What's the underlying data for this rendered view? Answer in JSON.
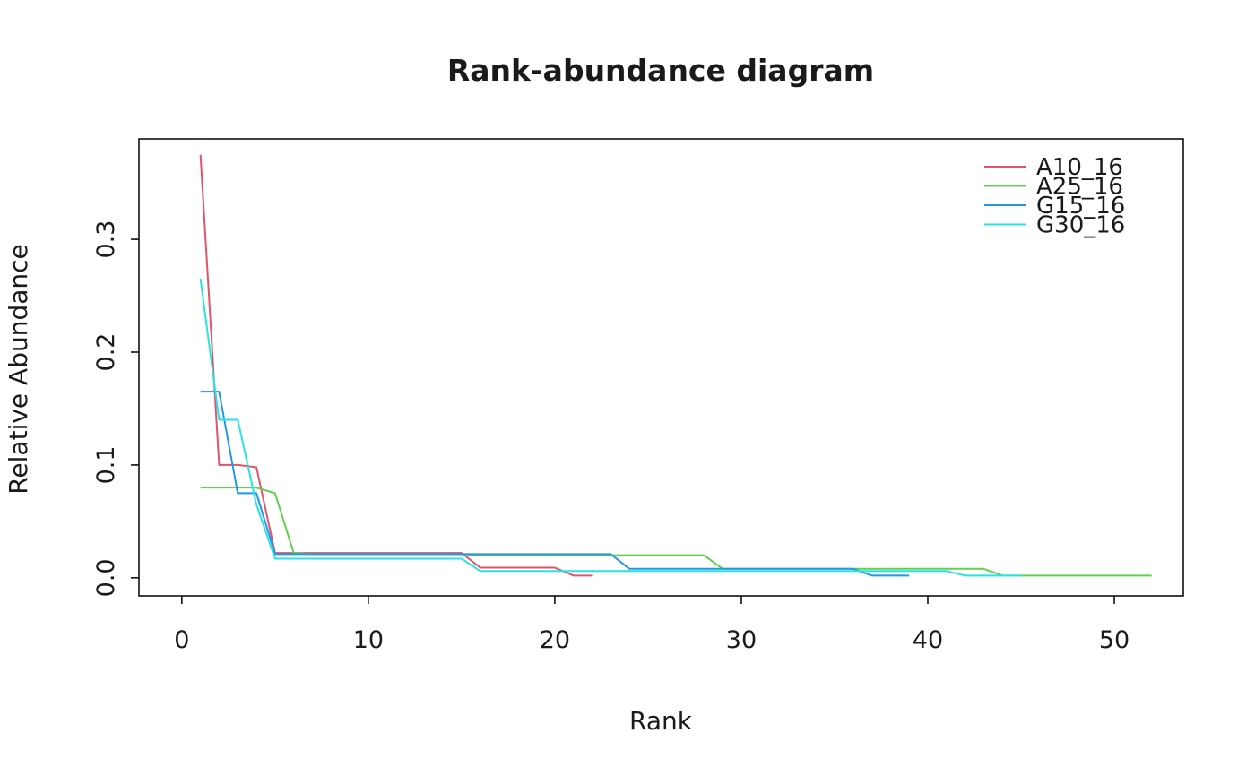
{
  "title": "Rank-abundance diagram",
  "chart_data": {
    "type": "line",
    "title": "Rank-abundance diagram",
    "xlabel": "Rank",
    "ylabel": "Relative Abundance",
    "x_ticks": [
      0,
      10,
      20,
      30,
      40,
      50
    ],
    "y_ticks": [
      0.0,
      0.1,
      0.2,
      0.3
    ],
    "xlim": [
      -2.3,
      53.7
    ],
    "ylim": [
      -0.016,
      0.389
    ],
    "grid": false,
    "legend_position": "topright",
    "series": [
      {
        "name": "A10_16",
        "color": "#df536b",
        "start_rank": 1,
        "values": [
          0.375,
          0.1,
          0.1,
          0.098,
          0.022,
          0.022,
          0.022,
          0.022,
          0.022,
          0.022,
          0.022,
          0.022,
          0.022,
          0.022,
          0.022,
          0.009,
          0.009,
          0.009,
          0.009,
          0.009,
          0.002,
          0.002
        ]
      },
      {
        "name": "A25_16",
        "color": "#61d04f",
        "start_rank": 1,
        "values": [
          0.08,
          0.08,
          0.08,
          0.08,
          0.075,
          0.022,
          0.021,
          0.021,
          0.021,
          0.021,
          0.021,
          0.021,
          0.021,
          0.021,
          0.021,
          0.02,
          0.02,
          0.02,
          0.02,
          0.02,
          0.02,
          0.02,
          0.02,
          0.02,
          0.02,
          0.02,
          0.02,
          0.02,
          0.008,
          0.008,
          0.008,
          0.008,
          0.008,
          0.008,
          0.008,
          0.008,
          0.008,
          0.008,
          0.008,
          0.008,
          0.008,
          0.008,
          0.008,
          0.002,
          0.002,
          0.002,
          0.002,
          0.002,
          0.002,
          0.002,
          0.002,
          0.002
        ]
      },
      {
        "name": "G15_16",
        "color": "#2297e6",
        "start_rank": 1,
        "values": [
          0.165,
          0.165,
          0.075,
          0.075,
          0.021,
          0.021,
          0.021,
          0.021,
          0.021,
          0.021,
          0.021,
          0.021,
          0.021,
          0.021,
          0.021,
          0.021,
          0.021,
          0.021,
          0.021,
          0.021,
          0.021,
          0.021,
          0.021,
          0.008,
          0.008,
          0.008,
          0.008,
          0.008,
          0.008,
          0.008,
          0.008,
          0.008,
          0.008,
          0.008,
          0.008,
          0.008,
          0.002,
          0.002,
          0.002
        ]
      },
      {
        "name": "G30_16",
        "color": "#28e2e5",
        "start_rank": 1,
        "values": [
          0.265,
          0.14,
          0.14,
          0.065,
          0.017,
          0.017,
          0.017,
          0.017,
          0.017,
          0.017,
          0.017,
          0.017,
          0.017,
          0.017,
          0.017,
          0.006,
          0.006,
          0.006,
          0.006,
          0.006,
          0.006,
          0.006,
          0.006,
          0.006,
          0.006,
          0.006,
          0.006,
          0.006,
          0.006,
          0.006,
          0.006,
          0.006,
          0.006,
          0.006,
          0.006,
          0.006,
          0.006,
          0.006,
          0.006,
          0.006,
          0.006,
          0.002,
          0.002,
          0.002,
          0.002
        ]
      }
    ]
  }
}
